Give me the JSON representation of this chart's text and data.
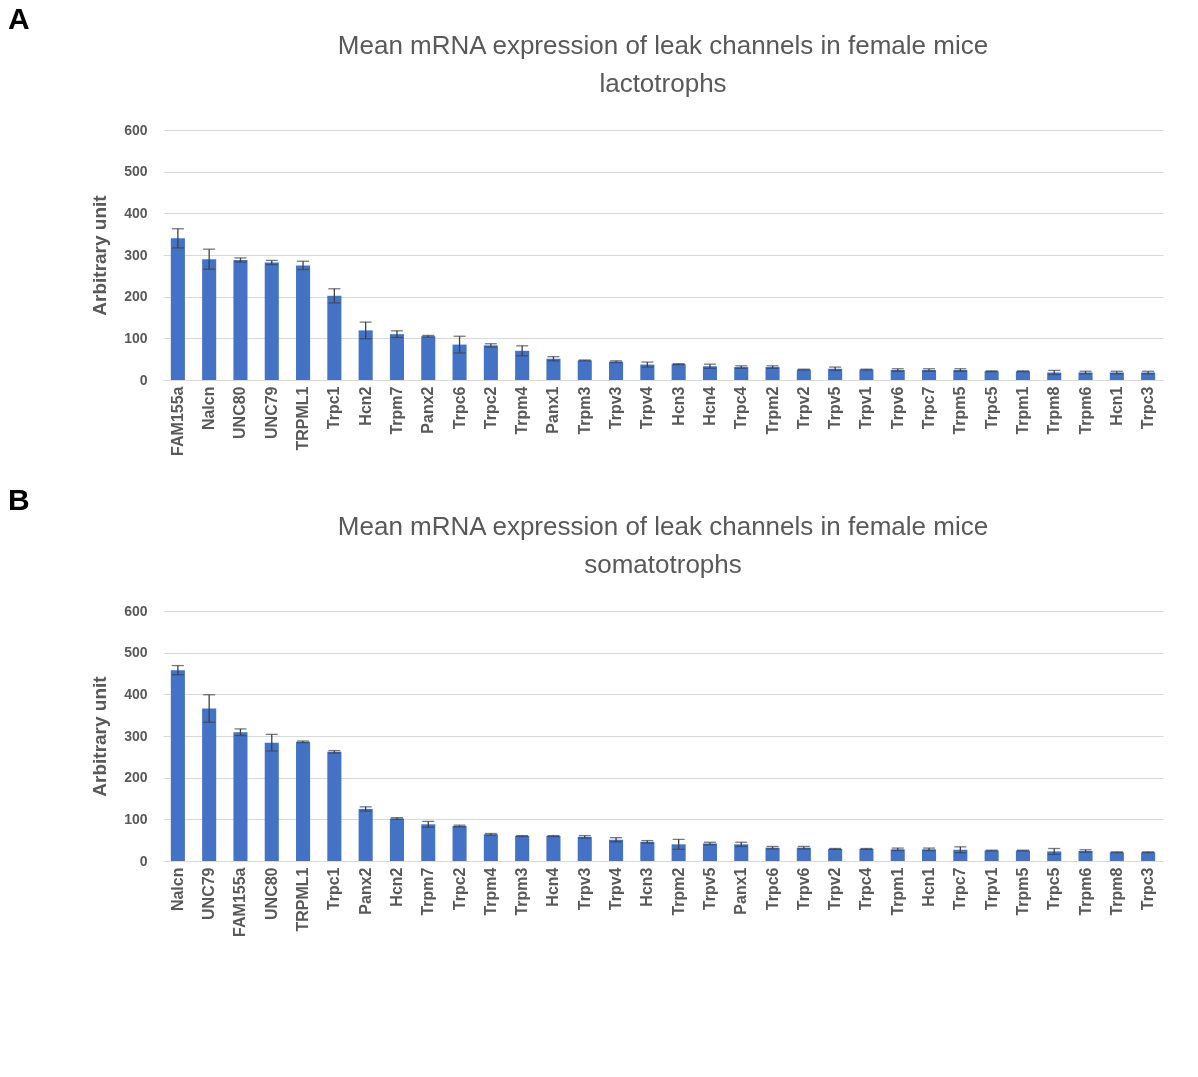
{
  "chart_data": [
    {
      "type": "bar",
      "title": [
        "Mean mRNA expression of leak channels in female mice",
        "lactotrophs"
      ],
      "ylabel": "Arbitrary unit",
      "annotations": [
        "A"
      ],
      "categories": [
        "FAM155a",
        "Nalcn",
        "UNC80",
        "UNC79",
        "TRPML1",
        "Trpc1",
        "Hcn2",
        "Trpm7",
        "Panx2",
        "Trpc6",
        "Trpc2",
        "Trpm4",
        "Panx1",
        "Trpm3",
        "Trpv3",
        "Trpv4",
        "Hcn3",
        "Hcn4",
        "Trpc4",
        "Trpm2",
        "Trpv2",
        "Trpv5",
        "Trpv1",
        "Trpv6",
        "Trpc7",
        "Trpm5",
        "Trpc5",
        "Trpm1",
        "Trpm8",
        "Trpm6",
        "Hcn1",
        "Trpc3"
      ],
      "values": [
        340,
        290,
        288,
        282,
        275,
        202,
        119,
        110,
        105,
        85,
        83,
        70,
        51,
        47,
        44,
        37,
        38,
        33,
        31,
        31,
        25,
        27,
        25,
        24,
        24,
        24,
        21,
        21,
        18,
        18,
        18,
        18
      ],
      "errors": [
        23,
        24,
        5,
        5,
        10,
        17,
        20,
        8,
        2,
        20,
        4,
        12,
        5,
        1,
        2,
        6,
        1,
        5,
        3,
        3,
        1,
        4,
        1,
        3,
        3,
        3,
        1,
        1,
        5,
        3,
        3,
        3
      ],
      "color": "#4472c4",
      "ylim": [
        0,
        600
      ],
      "yticks": [
        0,
        100,
        200,
        300,
        400,
        500,
        600
      ],
      "grid": "y"
    },
    {
      "type": "bar",
      "title": [
        "Mean mRNA expression of leak channels in female mice",
        "somatotrophs"
      ],
      "ylabel": "Arbitrary unit",
      "annotations": [
        "B"
      ],
      "categories": [
        "Nalcn",
        "UNC79",
        "FAM155a",
        "UNC80",
        "TRPML1",
        "Trpc1",
        "Panx2",
        "Hcn2",
        "Trpm7",
        "Trpc2",
        "Trpm4",
        "Trpm3",
        "Hcn4",
        "Trpv3",
        "Trpv4",
        "Hcn3",
        "Trpm2",
        "Trpv5",
        "Panx1",
        "Trpc6",
        "Trpv6",
        "Trpv2",
        "Trpc4",
        "Trpm1",
        "Hcn1",
        "Trpc7",
        "Trpv1",
        "Trpm5",
        "Trpc5",
        "Trpm6",
        "Trpm8",
        "Trpc3"
      ],
      "values": [
        458,
        366,
        309,
        284,
        286,
        262,
        125,
        102,
        88,
        84,
        64,
        60,
        60,
        58,
        51,
        46,
        40,
        42,
        40,
        32,
        32,
        29,
        29,
        28,
        28,
        27,
        25,
        25,
        23,
        24,
        21,
        21
      ],
      "errors": [
        11,
        33,
        8,
        20,
        2,
        3,
        5,
        2,
        7,
        2,
        2,
        1,
        1,
        3,
        5,
        3,
        12,
        3,
        5,
        3,
        3,
        1,
        1,
        3,
        3,
        7,
        1,
        1,
        7,
        3,
        1,
        1
      ],
      "color": "#4472c4",
      "ylim": [
        0,
        600
      ],
      "yticks": [
        0,
        100,
        200,
        300,
        400,
        500,
        600
      ],
      "grid": "y"
    }
  ]
}
